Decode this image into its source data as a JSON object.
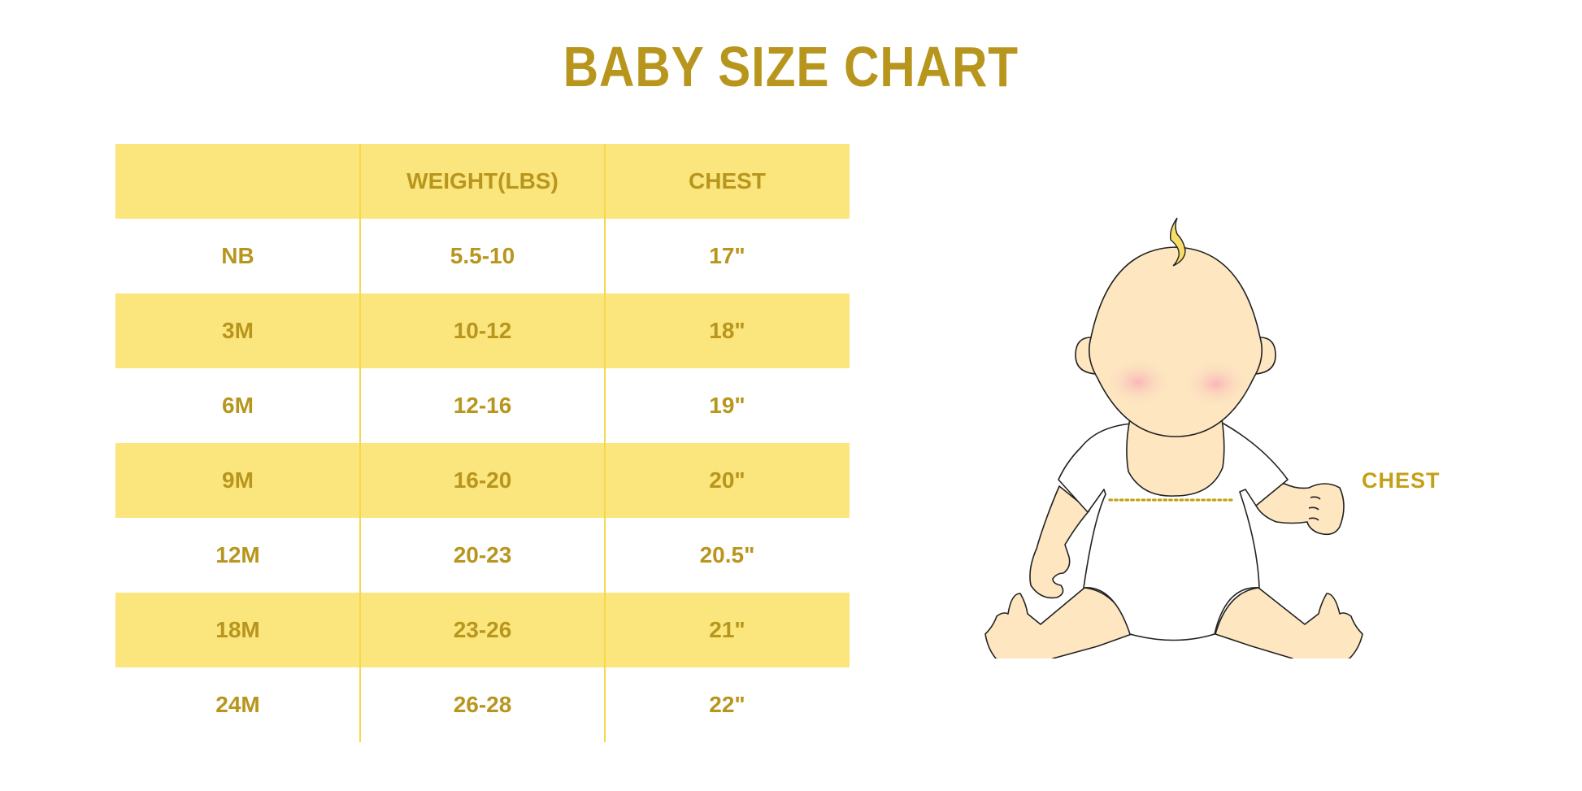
{
  "title": "BABY SIZE CHART",
  "colors": {
    "accent_text": "#b8961e",
    "row_shade": "#fbe57d",
    "divider": "#f7d84a",
    "skin": "#fde6c0",
    "hair": "#f7de6a",
    "cheek": "#f8b4b8"
  },
  "table": {
    "headers": [
      "",
      "WEIGHT(LBS)",
      "CHEST"
    ],
    "rows": [
      [
        "NB",
        "5.5-10",
        "17\""
      ],
      [
        "3M",
        "10-12",
        "18\""
      ],
      [
        "6M",
        "12-16",
        "19\""
      ],
      [
        "9M",
        "16-20",
        "20\""
      ],
      [
        "12M",
        "20-23",
        "20.5\""
      ],
      [
        "18M",
        "23-26",
        "21\""
      ],
      [
        "24M",
        "26-28",
        "22\""
      ]
    ]
  },
  "illustration": {
    "icon": "baby-illustration",
    "label": "CHEST"
  }
}
